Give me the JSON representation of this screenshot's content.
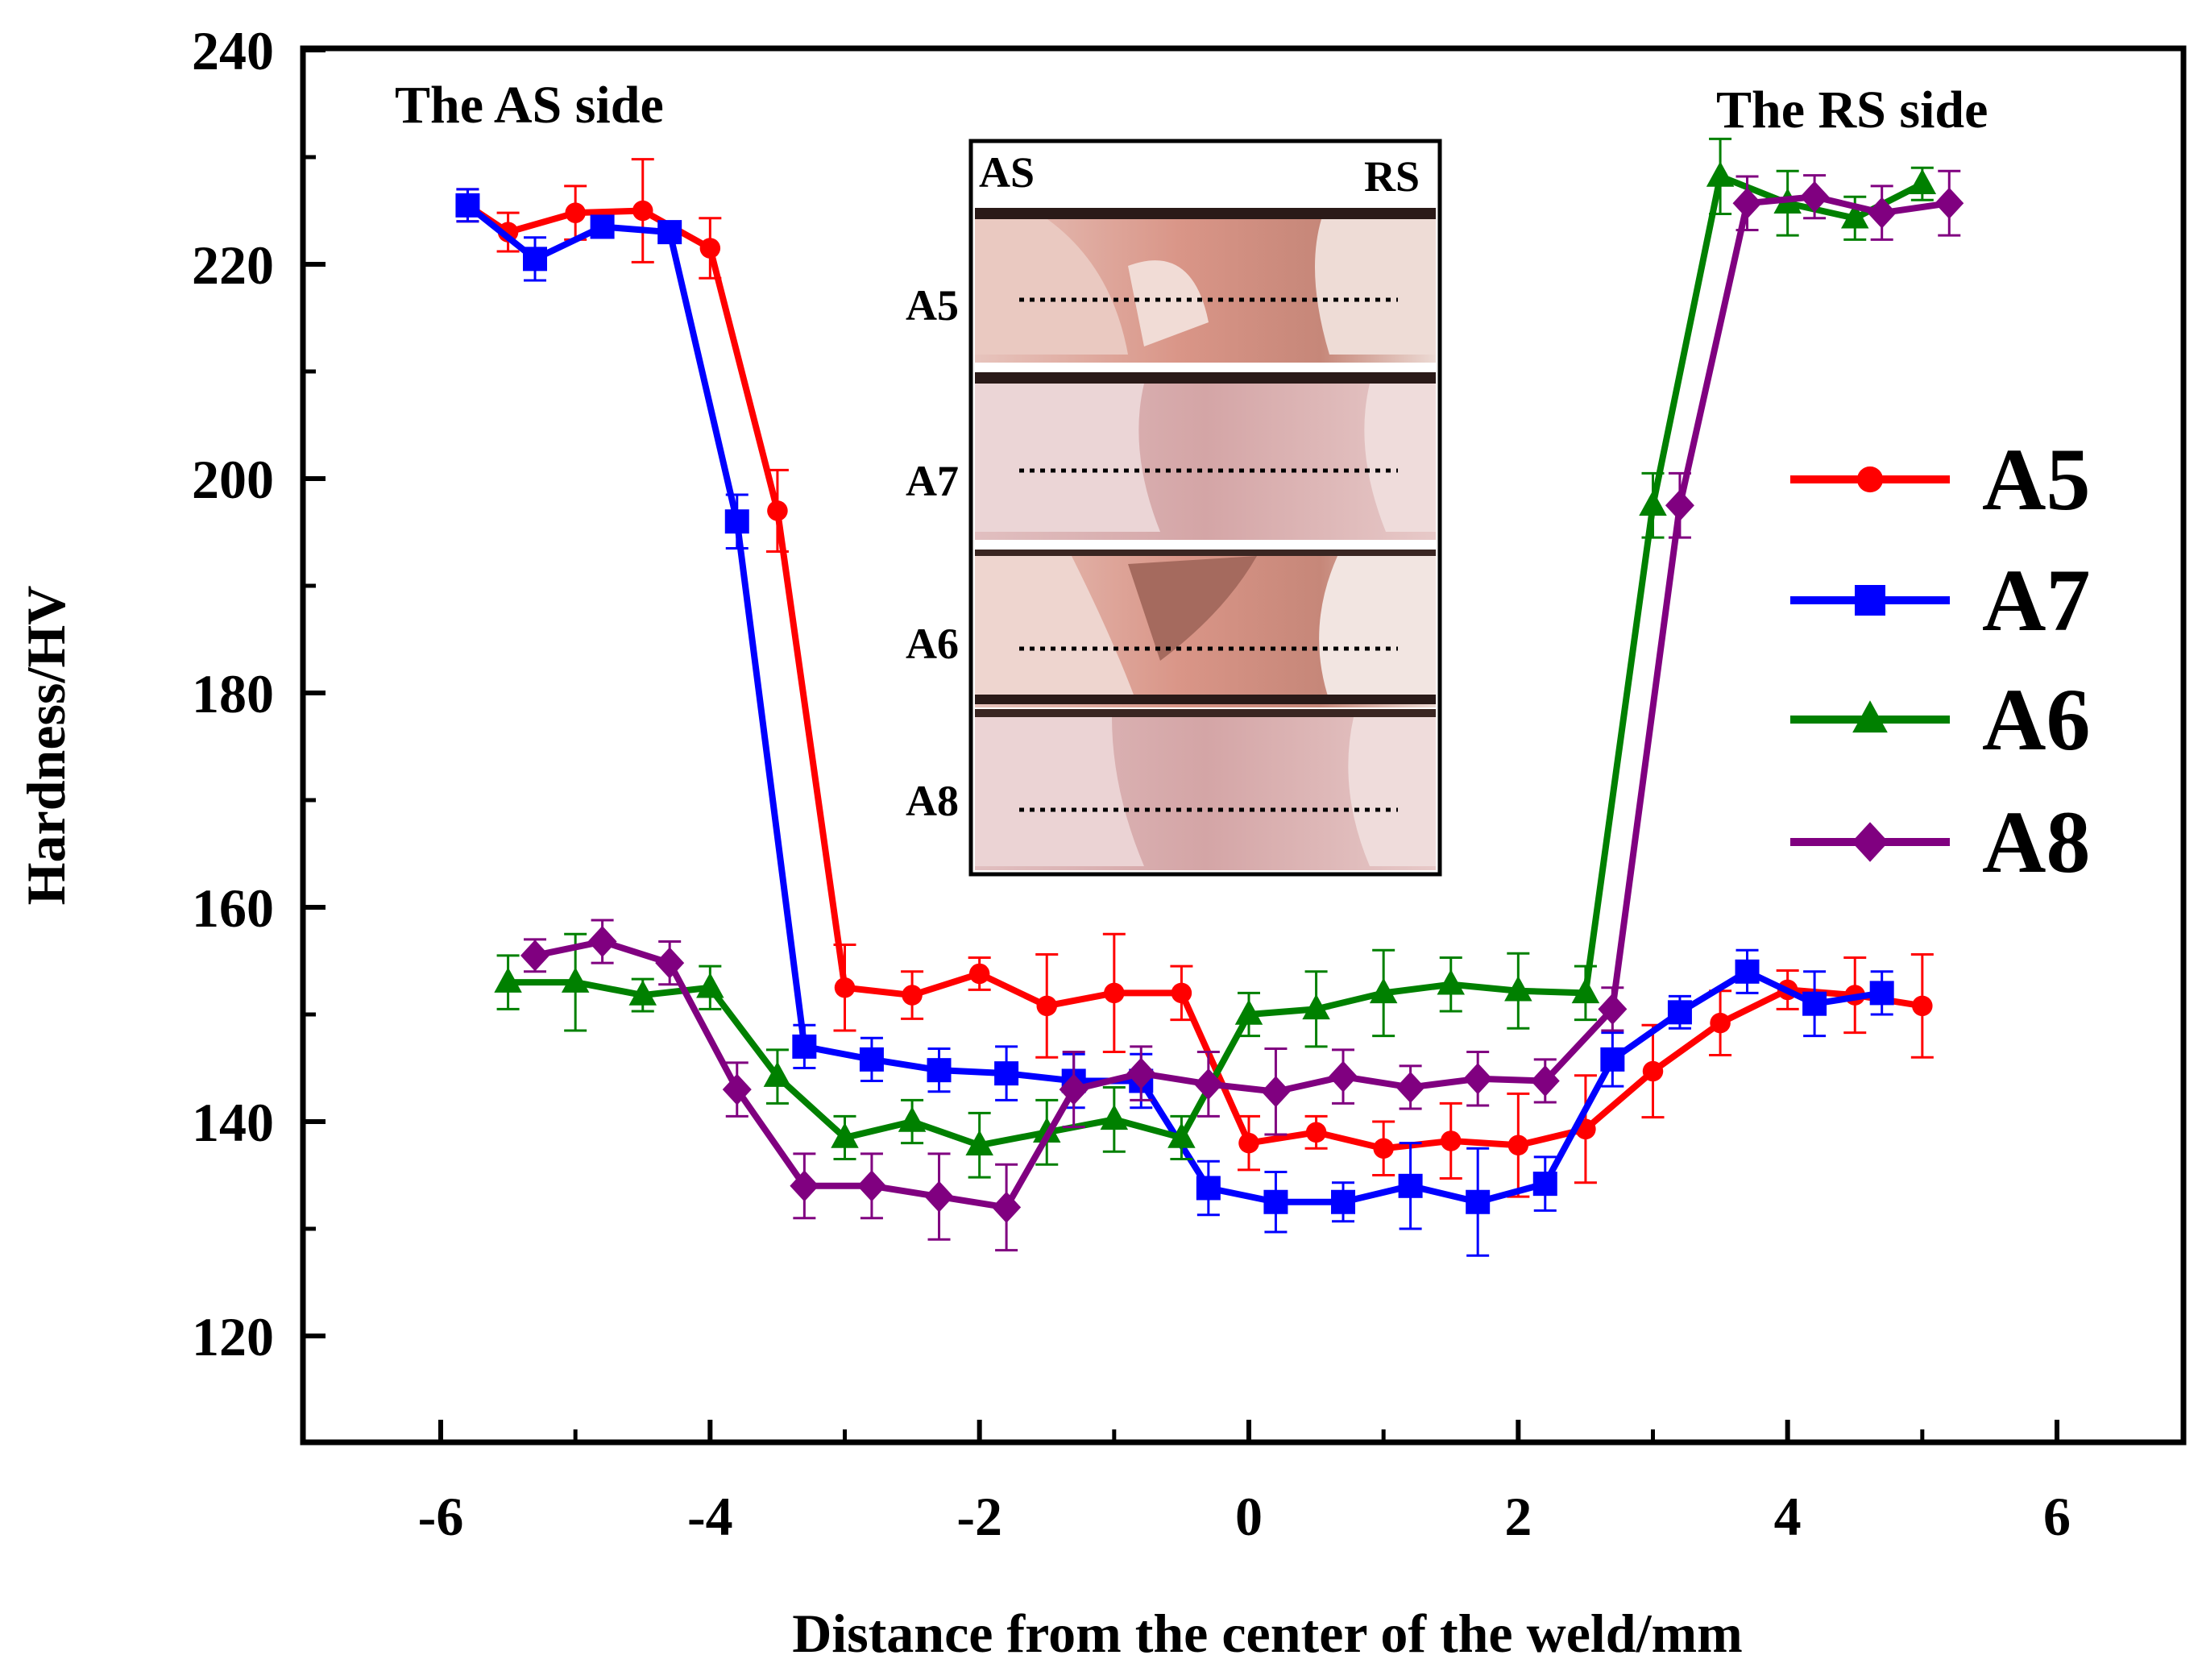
{
  "chart_data": {
    "type": "line",
    "title": "",
    "xlabel": "Distance from the center of the weld/mm",
    "ylabel": "Hardness/HV",
    "xlim": [
      -7,
      7
    ],
    "ylim": [
      110,
      240
    ],
    "x_ticks": [
      -6,
      -4,
      -2,
      0,
      2,
      4,
      6
    ],
    "x_tick_labels": [
      "-6",
      "-4",
      "-2",
      "0",
      "2",
      "4",
      "6"
    ],
    "y_ticks": [
      120,
      140,
      160,
      180,
      200,
      220,
      240
    ],
    "y_tick_labels": [
      "120",
      "140",
      "160",
      "180",
      "200",
      "220",
      "240"
    ],
    "grid": false,
    "legend_position": "right",
    "annotations": {
      "as_side": "The AS side",
      "rs_side": "The RS side"
    },
    "inset": {
      "left_label": "AS",
      "right_label": "RS",
      "sample_labels": [
        "A5",
        "A7",
        "A6",
        "A8"
      ]
    },
    "series": [
      {
        "name": "A5",
        "color": "#ff0000",
        "marker": "circle",
        "x": [
          -5.8,
          -5.5,
          -5.0,
          -4.5,
          -4.0,
          -3.5,
          -3.0,
          -2.5,
          -2.0,
          -1.5,
          -1.0,
          -0.5,
          0.0,
          0.5,
          1.0,
          1.5,
          2.0,
          2.5,
          3.0,
          3.5,
          4.0,
          4.5,
          5.0
        ],
        "y": [
          225.5,
          223,
          224.8,
          225,
          221.5,
          197,
          152.5,
          151.8,
          153.8,
          150.8,
          152,
          152,
          138,
          139,
          137.5,
          138.2,
          137.8,
          139.3,
          144.7,
          149.2,
          152.3,
          151.8,
          150.8
        ],
        "err": [
          1.5,
          1.8,
          2.5,
          4.8,
          2.8,
          3.8,
          4.0,
          2.2,
          1.5,
          4.8,
          5.5,
          2.5,
          2.5,
          1.5,
          2.5,
          3.5,
          4.8,
          5.0,
          4.3,
          3.0,
          1.8,
          3.5,
          4.8
        ]
      },
      {
        "name": "A7",
        "color": "#0000ff",
        "marker": "square",
        "x": [
          -5.8,
          -5.3,
          -4.8,
          -4.3,
          -3.8,
          -3.3,
          -2.8,
          -2.3,
          -1.8,
          -1.3,
          -0.8,
          -0.3,
          0.2,
          0.7,
          1.2,
          1.7,
          2.2,
          2.7,
          3.2,
          3.7,
          4.2,
          4.7
        ],
        "y": [
          225.5,
          220.5,
          223.5,
          223,
          196,
          147,
          145.8,
          144.8,
          144.5,
          143.8,
          143.8,
          133.8,
          132.5,
          132.5,
          134,
          132.5,
          134.2,
          145.8,
          150.2,
          154,
          151,
          152
        ],
        "err": [
          1.5,
          2.0,
          0.8,
          0.8,
          2.5,
          2.0,
          2.0,
          2.0,
          2.5,
          2.5,
          2.5,
          2.5,
          2.8,
          1.8,
          4.0,
          5.0,
          2.5,
          2.5,
          1.5,
          2.0,
          3.0,
          2.0
        ]
      },
      {
        "name": "A6",
        "color": "#008000",
        "marker": "triangle",
        "x": [
          -5.5,
          -5.0,
          -4.5,
          -4.0,
          -3.5,
          -3.0,
          -2.5,
          -2.0,
          -1.5,
          -1.0,
          -0.5,
          0.0,
          0.5,
          1.0,
          1.5,
          2.0,
          2.5,
          3.0,
          3.5,
          4.0,
          4.5,
          5.0
        ],
        "y": [
          153,
          153,
          151.8,
          152.5,
          144.2,
          138.5,
          140,
          137.8,
          139,
          140.2,
          138.5,
          150,
          150.5,
          152,
          152.8,
          152.2,
          152,
          197.5,
          228.2,
          225.7,
          224.3,
          227.5
        ],
        "err": [
          2.5,
          4.5,
          1.5,
          2.0,
          2.5,
          2.0,
          2.0,
          3.0,
          3.0,
          3.0,
          2.0,
          2.0,
          3.5,
          4.0,
          2.5,
          3.5,
          2.5,
          3.0,
          3.5,
          3.0,
          2.0,
          1.5
        ]
      },
      {
        "name": "A8",
        "color": "#800080",
        "marker": "diamond",
        "x": [
          -5.3,
          -4.8,
          -4.3,
          -3.8,
          -3.3,
          -2.8,
          -2.3,
          -1.8,
          -1.3,
          -0.8,
          -0.3,
          0.2,
          0.7,
          1.2,
          1.7,
          2.2,
          2.7,
          3.2,
          3.7,
          4.2,
          4.7,
          5.2
        ],
        "y": [
          155.5,
          156.8,
          154.8,
          143,
          134,
          134,
          133,
          132,
          143,
          144.5,
          143.5,
          142.8,
          144.2,
          143.2,
          144,
          143.8,
          150.5,
          197.5,
          225.7,
          226.3,
          224.8,
          225.7
        ],
        "err": [
          1.5,
          2.0,
          2.0,
          2.5,
          3.0,
          3.0,
          4.0,
          4.0,
          3.5,
          2.5,
          3.0,
          4.0,
          2.5,
          2.0,
          2.5,
          2.0,
          2.0,
          3.0,
          2.5,
          2.0,
          2.5,
          3.0
        ]
      }
    ]
  }
}
